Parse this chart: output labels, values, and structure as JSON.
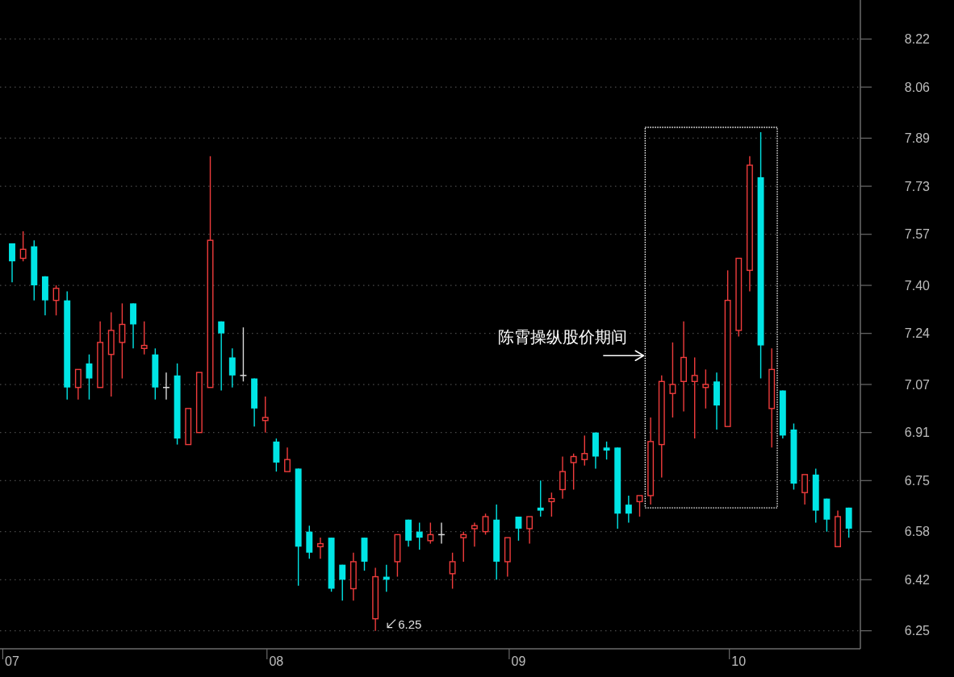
{
  "chart_data": {
    "type": "candlestick",
    "categories": [
      "07",
      null,
      null,
      null,
      null,
      null,
      null,
      null,
      null,
      null,
      null,
      null,
      null,
      null,
      null,
      null,
      null,
      null,
      null,
      null,
      null,
      null,
      null,
      null,
      "08",
      null,
      null,
      null,
      null,
      null,
      null,
      null,
      null,
      null,
      null,
      null,
      null,
      null,
      null,
      null,
      null,
      null,
      null,
      null,
      null,
      null,
      "09",
      null,
      null,
      null,
      null,
      null,
      null,
      null,
      null,
      null,
      null,
      null,
      null,
      null,
      null,
      null,
      null,
      null,
      null,
      null,
      "10",
      null,
      null,
      null,
      null,
      null,
      null,
      null,
      null,
      null,
      null
    ],
    "ohlc": [
      [
        7.54,
        7.54,
        7.41,
        7.48
      ],
      [
        7.49,
        7.58,
        7.48,
        7.52
      ],
      [
        7.53,
        7.55,
        7.35,
        7.4
      ],
      [
        7.43,
        7.43,
        7.3,
        7.35
      ],
      [
        7.35,
        7.4,
        7.3,
        7.39
      ],
      [
        7.35,
        7.38,
        7.02,
        7.06
      ],
      [
        7.06,
        7.12,
        7.02,
        7.12
      ],
      [
        7.14,
        7.17,
        7.02,
        7.09
      ],
      [
        7.06,
        7.28,
        7.06,
        7.21
      ],
      [
        7.17,
        7.31,
        7.03,
        7.25
      ],
      [
        7.21,
        7.34,
        7.09,
        7.27
      ],
      [
        7.34,
        7.34,
        7.19,
        7.27
      ],
      [
        7.19,
        7.28,
        7.17,
        7.2
      ],
      [
        7.17,
        7.19,
        7.02,
        7.06
      ],
      [
        7.06,
        7.11,
        7.02,
        7.06
      ],
      [
        7.1,
        7.14,
        6.87,
        6.89
      ],
      [
        6.87,
        6.99,
        6.87,
        6.99
      ],
      [
        6.91,
        7.11,
        6.91,
        7.11
      ],
      [
        7.06,
        7.83,
        7.06,
        7.55
      ],
      [
        7.28,
        7.28,
        7.05,
        7.24
      ],
      [
        7.16,
        7.19,
        7.06,
        7.1
      ],
      [
        7.1,
        7.26,
        7.08,
        7.1
      ],
      [
        7.09,
        7.09,
        6.93,
        6.99
      ],
      [
        6.95,
        7.03,
        6.91,
        6.96
      ],
      [
        6.88,
        6.89,
        6.78,
        6.81
      ],
      [
        6.78,
        6.86,
        6.78,
        6.82
      ],
      [
        6.79,
        6.79,
        6.4,
        6.53
      ],
      [
        6.58,
        6.6,
        6.49,
        6.51
      ],
      [
        6.53,
        6.56,
        6.49,
        6.54
      ],
      [
        6.56,
        6.56,
        6.38,
        6.39
      ],
      [
        6.47,
        6.47,
        6.35,
        6.42
      ],
      [
        6.39,
        6.51,
        6.35,
        6.48
      ],
      [
        6.56,
        6.56,
        6.45,
        6.48
      ],
      [
        6.29,
        6.46,
        6.25,
        6.43
      ],
      [
        6.43,
        6.47,
        6.38,
        6.42
      ],
      [
        6.48,
        6.57,
        6.43,
        6.57
      ],
      [
        6.62,
        6.62,
        6.53,
        6.55
      ],
      [
        6.58,
        6.61,
        6.52,
        6.56
      ],
      [
        6.55,
        6.61,
        6.54,
        6.57
      ],
      [
        6.57,
        6.61,
        6.54,
        6.57
      ],
      [
        6.44,
        6.51,
        6.39,
        6.48
      ],
      [
        6.56,
        6.58,
        6.48,
        6.57
      ],
      [
        6.59,
        6.61,
        6.53,
        6.6
      ],
      [
        6.58,
        6.64,
        6.57,
        6.63
      ],
      [
        6.62,
        6.67,
        6.42,
        6.48
      ],
      [
        6.48,
        6.56,
        6.43,
        6.56
      ],
      [
        6.63,
        6.63,
        6.55,
        6.59
      ],
      [
        6.59,
        6.63,
        6.54,
        6.63
      ],
      [
        6.66,
        6.75,
        6.63,
        6.65
      ],
      [
        6.68,
        6.71,
        6.63,
        6.69
      ],
      [
        6.72,
        6.83,
        6.69,
        6.78
      ],
      [
        6.81,
        6.84,
        6.72,
        6.83
      ],
      [
        6.82,
        6.9,
        6.8,
        6.84
      ],
      [
        6.91,
        6.91,
        6.79,
        6.83
      ],
      [
        6.86,
        6.88,
        6.82,
        6.85
      ],
      [
        6.86,
        6.86,
        6.59,
        6.64
      ],
      [
        6.67,
        6.7,
        6.61,
        6.64
      ],
      [
        6.68,
        6.7,
        6.63,
        6.7
      ],
      [
        6.7,
        6.96,
        6.67,
        6.88
      ],
      [
        6.87,
        7.1,
        6.76,
        7.08
      ],
      [
        7.04,
        7.21,
        6.96,
        7.07
      ],
      [
        7.08,
        7.28,
        6.98,
        7.16
      ],
      [
        7.08,
        7.16,
        6.89,
        7.1
      ],
      [
        7.06,
        7.12,
        6.99,
        7.07
      ],
      [
        7.08,
        7.11,
        6.92,
        7.0
      ],
      [
        6.93,
        7.45,
        6.93,
        7.35
      ],
      [
        7.25,
        7.49,
        7.23,
        7.49
      ],
      [
        7.45,
        7.83,
        7.38,
        7.8
      ],
      [
        7.76,
        7.91,
        7.09,
        7.2
      ],
      [
        6.99,
        7.19,
        6.86,
        7.12
      ],
      [
        7.05,
        7.05,
        6.89,
        6.9
      ],
      [
        6.92,
        6.94,
        6.72,
        6.74
      ],
      [
        6.71,
        6.77,
        6.67,
        6.77
      ],
      [
        6.77,
        6.79,
        6.61,
        6.65
      ],
      [
        6.69,
        6.69,
        6.58,
        6.62
      ],
      [
        6.53,
        6.65,
        6.53,
        6.63
      ],
      [
        6.66,
        6.66,
        6.56,
        6.59
      ]
    ],
    "colors": [
      "#00e5e5",
      "#f03c3c",
      "#00e5e5",
      "#00e5e5",
      "#f03c3c",
      "#00e5e5",
      "#f03c3c",
      "#00e5e5",
      "#f03c3c",
      "#f03c3c",
      "#f03c3c",
      "#00e5e5",
      "#f03c3c",
      "#00e5e5",
      "#d9d9d9",
      "#00e5e5",
      "#f03c3c",
      "#f03c3c",
      "#f03c3c",
      "#00e5e5",
      "#00e5e5",
      "#d9d9d9",
      "#00e5e5",
      "#f03c3c",
      "#00e5e5",
      "#f03c3c",
      "#00e5e5",
      "#00e5e5",
      "#f03c3c",
      "#00e5e5",
      "#00e5e5",
      "#f03c3c",
      "#00e5e5",
      "#f03c3c",
      "#00e5e5",
      "#f03c3c",
      "#00e5e5",
      "#00e5e5",
      "#f03c3c",
      "#d9d9d9",
      "#f03c3c",
      "#f03c3c",
      "#f03c3c",
      "#f03c3c",
      "#00e5e5",
      "#f03c3c",
      "#00e5e5",
      "#f03c3c",
      "#00e5e5",
      "#f03c3c",
      "#f03c3c",
      "#f03c3c",
      "#f03c3c",
      "#00e5e5",
      "#00e5e5",
      "#00e5e5",
      "#00e5e5",
      "#f03c3c",
      "#f03c3c",
      "#f03c3c",
      "#f03c3c",
      "#f03c3c",
      "#f03c3c",
      "#f03c3c",
      "#00e5e5",
      "#f03c3c",
      "#f03c3c",
      "#f03c3c",
      "#00e5e5",
      "#f03c3c",
      "#00e5e5",
      "#00e5e5",
      "#f03c3c",
      "#00e5e5",
      "#00e5e5",
      "#f03c3c",
      "#00e5e5"
    ],
    "ylim": [
      6.19,
      8.35
    ],
    "yticks": [
      6.25,
      6.42,
      6.58,
      6.75,
      6.91,
      7.07,
      7.24,
      {
        "value": 7.4,
        "label": "7.40"
      },
      7.57,
      7.73,
      7.89,
      8.06,
      8.22
    ],
    "grid": "y",
    "annotations": [
      "陈霄操纵股价期间",
      "6.25"
    ]
  }
}
